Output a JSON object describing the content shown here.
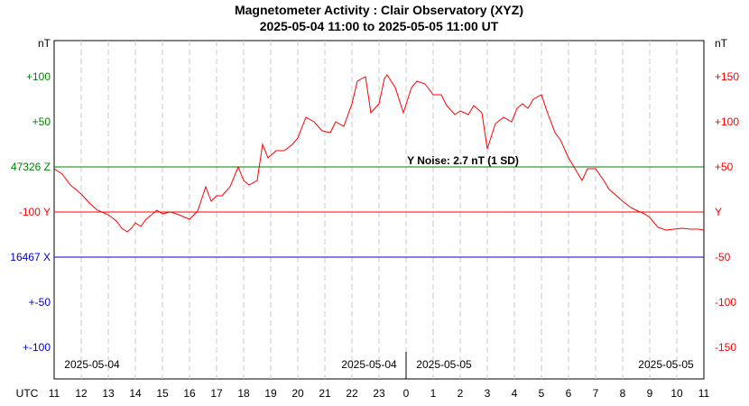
{
  "chart_data": {
    "type": "line",
    "title": "Magnetometer Activity : Clair Observatory (XYZ)",
    "subtitle": "2025-05-04 11:00 to 2025-05-05 11:00 UT",
    "left_unit": "nT",
    "right_unit": "nT",
    "x_axis_label": "UTC",
    "x_ticks": [
      "11",
      "12",
      "13",
      "14",
      "15",
      "16",
      "17",
      "18",
      "19",
      "20",
      "21",
      "22",
      "23",
      "0",
      "1",
      "2",
      "3",
      "4",
      "5",
      "6",
      "7",
      "8",
      "9",
      "10",
      "11"
    ],
    "date_labels": [
      "2025-05-04",
      "2025-05-04",
      "2025-05-05",
      "2025-05-05"
    ],
    "left_ticks": [
      {
        "label": "nT",
        "color": "#000000"
      },
      {
        "label": "+100",
        "color": "#008000"
      },
      {
        "label": "+50",
        "color": "#008000"
      },
      {
        "label": "47326 Z",
        "color": "#008000"
      },
      {
        "label": "-100   Y",
        "color": "#ff0000"
      },
      {
        "label": "16467 X",
        "color": "#0000cc"
      },
      {
        "label": "+-50",
        "color": "#0000cc"
      },
      {
        "label": "+-100",
        "color": "#0000cc"
      }
    ],
    "right_ticks": [
      "nT",
      "+150",
      "+100",
      "+50",
      "Y",
      "-50",
      "-100",
      "-150"
    ],
    "baselines": [
      {
        "component": "Z",
        "color": "#008000"
      },
      {
        "component": "Y",
        "color": "#ff0000"
      },
      {
        "component": "X",
        "color": "#0000cc"
      }
    ],
    "annotation": "Y Noise: 2.7 nT (1 SD)",
    "ylim": [
      -160,
      175
    ],
    "series": [
      {
        "color": "#ff0000",
        "x_hours": [
          0,
          0.3,
          0.6,
          1.0,
          1.3,
          1.6,
          2.0,
          2.3,
          2.5,
          2.7,
          2.85,
          3.0,
          3.2,
          3.4,
          3.6,
          3.8,
          4.0,
          4.3,
          4.6,
          5.0,
          5.3,
          5.6,
          5.8,
          6.0,
          6.2,
          6.5,
          6.8,
          7.0,
          7.2,
          7.5,
          7.7,
          7.9,
          8.2,
          8.5,
          8.8,
          9.0,
          9.3,
          9.6,
          9.9,
          10.2,
          10.4,
          10.7,
          11.0,
          11.2,
          11.5,
          11.7,
          12.0,
          12.2,
          12.3,
          12.6,
          12.9,
          13.2,
          13.4,
          13.7,
          14.0,
          14.3,
          14.5,
          14.8,
          15.0,
          15.3,
          15.5,
          15.8,
          16.0,
          16.3,
          16.6,
          16.9,
          17.1,
          17.3,
          17.5,
          17.7,
          18.0,
          18.2,
          18.5,
          18.7,
          19.0,
          19.2,
          19.5,
          19.7,
          20.0,
          20.3,
          20.5,
          20.7,
          21.0,
          21.3,
          21.5,
          21.8,
          22.0,
          22.3,
          22.6,
          22.9,
          23.2,
          23.5,
          23.8,
          24.0
        ],
        "values": [
          48,
          42,
          30,
          20,
          10,
          2,
          -3,
          -10,
          -18,
          -22,
          -18,
          -12,
          -16,
          -8,
          -3,
          2,
          -2,
          0,
          -3,
          -8,
          1,
          28,
          12,
          18,
          18,
          28,
          50,
          35,
          30,
          35,
          75,
          60,
          68,
          68,
          75,
          82,
          105,
          100,
          90,
          88,
          100,
          95,
          120,
          145,
          150,
          110,
          120,
          148,
          152,
          138,
          110,
          138,
          145,
          142,
          130,
          130,
          118,
          108,
          112,
          108,
          118,
          110,
          70,
          98,
          105,
          100,
          115,
          120,
          115,
          125,
          130,
          112,
          88,
          80,
          60,
          50,
          35,
          48,
          48,
          35,
          25,
          20,
          12,
          5,
          2,
          -2,
          -6,
          -17,
          -20,
          -19,
          -18,
          -19,
          -19,
          -20
        ]
      }
    ]
  }
}
